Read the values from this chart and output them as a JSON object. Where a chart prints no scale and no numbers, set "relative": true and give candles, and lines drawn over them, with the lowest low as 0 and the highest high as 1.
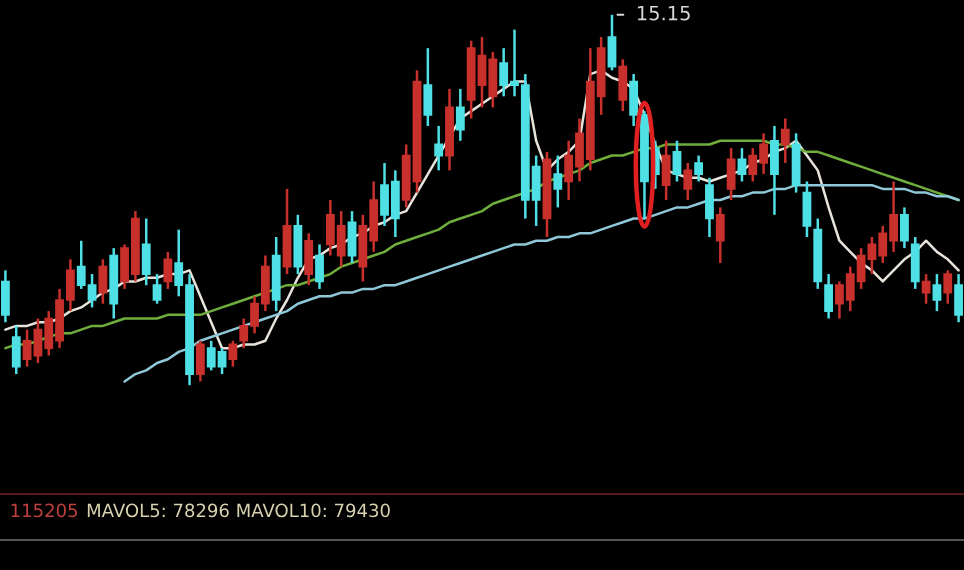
{
  "chart_data": {
    "type": "candlestick",
    "relative": true,
    "categories": [
      null,
      null,
      null,
      null,
      null,
      null,
      null,
      null,
      null,
      null,
      null,
      null,
      null,
      null,
      null,
      null,
      null,
      null,
      null,
      null,
      null,
      null,
      null,
      null,
      null,
      null,
      null,
      null,
      null,
      null,
      null,
      null,
      null,
      null,
      null,
      null,
      null,
      null,
      null,
      null,
      null,
      null,
      null,
      null,
      null,
      null,
      null,
      null,
      null,
      null,
      null,
      null,
      null,
      null,
      null,
      null,
      null,
      null,
      null,
      null,
      null,
      null,
      null,
      null,
      null,
      null,
      null,
      null,
      null,
      null,
      null,
      null,
      null,
      null,
      null,
      null,
      null,
      null,
      null,
      null,
      null,
      null,
      null,
      null,
      null,
      null,
      null,
      null,
      null
    ],
    "ohlc": [
      [
        0.28,
        0.31,
        0.17,
        0.19
      ],
      [
        0.13,
        0.16,
        0.03,
        0.05
      ],
      [
        0.07,
        0.15,
        0.05,
        0.12
      ],
      [
        0.08,
        0.18,
        0.06,
        0.15
      ],
      [
        0.1,
        0.2,
        0.08,
        0.18
      ],
      [
        0.12,
        0.26,
        0.1,
        0.23
      ],
      [
        0.23,
        0.34,
        0.2,
        0.31
      ],
      [
        0.32,
        0.39,
        0.26,
        0.27
      ],
      [
        0.27,
        0.3,
        0.21,
        0.23
      ],
      [
        0.25,
        0.34,
        0.22,
        0.32
      ],
      [
        0.35,
        0.37,
        0.18,
        0.22
      ],
      [
        0.28,
        0.38,
        0.26,
        0.37
      ],
      [
        0.3,
        0.47,
        0.28,
        0.45
      ],
      [
        0.38,
        0.45,
        0.27,
        0.3
      ],
      [
        0.27,
        0.3,
        0.22,
        0.23
      ],
      [
        0.28,
        0.36,
        0.26,
        0.34
      ],
      [
        0.33,
        0.42,
        0.24,
        0.27
      ],
      [
        0.27,
        0.3,
        0.0,
        0.03
      ],
      [
        0.03,
        0.12,
        0.01,
        0.11
      ],
      [
        0.1,
        0.12,
        0.04,
        0.05
      ],
      [
        0.09,
        0.1,
        0.03,
        0.05
      ],
      [
        0.07,
        0.12,
        0.05,
        0.11
      ],
      [
        0.12,
        0.18,
        0.1,
        0.16
      ],
      [
        0.16,
        0.24,
        0.14,
        0.22
      ],
      [
        0.22,
        0.35,
        0.2,
        0.32
      ],
      [
        0.35,
        0.4,
        0.2,
        0.23
      ],
      [
        0.32,
        0.53,
        0.3,
        0.43
      ],
      [
        0.43,
        0.46,
        0.3,
        0.32
      ],
      [
        0.3,
        0.41,
        0.27,
        0.39
      ],
      [
        0.35,
        0.38,
        0.26,
        0.28
      ],
      [
        0.38,
        0.5,
        0.35,
        0.46
      ],
      [
        0.35,
        0.47,
        0.32,
        0.43
      ],
      [
        0.44,
        0.47,
        0.33,
        0.35
      ],
      [
        0.32,
        0.46,
        0.28,
        0.43
      ],
      [
        0.39,
        0.55,
        0.36,
        0.5
      ],
      [
        0.54,
        0.6,
        0.43,
        0.46
      ],
      [
        0.55,
        0.58,
        0.4,
        0.45
      ],
      [
        0.5,
        0.65,
        0.48,
        0.62
      ],
      [
        0.55,
        0.85,
        0.52,
        0.82
      ],
      [
        0.81,
        0.91,
        0.7,
        0.73
      ],
      [
        0.65,
        0.7,
        0.58,
        0.62
      ],
      [
        0.62,
        0.8,
        0.58,
        0.75
      ],
      [
        0.75,
        0.8,
        0.66,
        0.69
      ],
      [
        0.77,
        0.93,
        0.72,
        0.91
      ],
      [
        0.81,
        0.94,
        0.75,
        0.89
      ],
      [
        0.78,
        0.9,
        0.75,
        0.88
      ],
      [
        0.87,
        0.91,
        0.78,
        0.81
      ],
      [
        0.82,
        0.96,
        0.78,
        0.81
      ],
      [
        0.81,
        0.84,
        0.45,
        0.5
      ],
      [
        0.59,
        0.62,
        0.43,
        0.5
      ],
      [
        0.45,
        0.63,
        0.4,
        0.61
      ],
      [
        0.57,
        0.62,
        0.48,
        0.53
      ],
      [
        0.55,
        0.66,
        0.5,
        0.62
      ],
      [
        0.59,
        0.72,
        0.55,
        0.68
      ],
      [
        0.61,
        0.91,
        0.58,
        0.82
      ],
      [
        0.78,
        0.94,
        0.73,
        0.91
      ],
      [
        0.94,
        1.0,
        0.85,
        0.86
      ],
      [
        0.77,
        0.88,
        0.74,
        0.86
      ],
      [
        0.82,
        0.84,
        0.7,
        0.73
      ],
      [
        0.73,
        0.74,
        0.45,
        0.55
      ],
      [
        0.64,
        0.66,
        0.53,
        0.57
      ],
      [
        0.54,
        0.66,
        0.5,
        0.62
      ],
      [
        0.63,
        0.66,
        0.55,
        0.57
      ],
      [
        0.53,
        0.6,
        0.5,
        0.58
      ],
      [
        0.6,
        0.62,
        0.55,
        0.57
      ],
      [
        0.54,
        0.56,
        0.4,
        0.45
      ],
      [
        0.39,
        0.48,
        0.33,
        0.46
      ],
      [
        0.53,
        0.64,
        0.5,
        0.61
      ],
      [
        0.61,
        0.64,
        0.55,
        0.57
      ],
      [
        0.57,
        0.64,
        0.55,
        0.62
      ],
      [
        0.6,
        0.68,
        0.57,
        0.65
      ],
      [
        0.66,
        0.7,
        0.46,
        0.57
      ],
      [
        0.65,
        0.72,
        0.6,
        0.69
      ],
      [
        0.65,
        0.68,
        0.52,
        0.54
      ],
      [
        0.52,
        0.55,
        0.4,
        0.43
      ],
      [
        0.42,
        0.45,
        0.26,
        0.28
      ],
      [
        0.27,
        0.3,
        0.18,
        0.2
      ],
      [
        0.22,
        0.28,
        0.18,
        0.27
      ],
      [
        0.23,
        0.32,
        0.2,
        0.3
      ],
      [
        0.28,
        0.37,
        0.26,
        0.35
      ],
      [
        0.34,
        0.4,
        0.3,
        0.38
      ],
      [
        0.35,
        0.43,
        0.33,
        0.41
      ],
      [
        0.39,
        0.55,
        0.36,
        0.46
      ],
      [
        0.46,
        0.48,
        0.37,
        0.39
      ],
      [
        0.38,
        0.4,
        0.26,
        0.28
      ],
      [
        0.25,
        0.3,
        0.22,
        0.28
      ],
      [
        0.27,
        0.3,
        0.2,
        0.23
      ],
      [
        0.25,
        0.31,
        0.22,
        0.3
      ],
      [
        0.27,
        0.3,
        0.17,
        0.19
      ]
    ],
    "colors": [
      "#4fe0e6",
      "#4fe0e6",
      "#c8302c",
      "#c8302c",
      "#c8302c",
      "#c8302c",
      "#c8302c",
      "#4fe0e6",
      "#4fe0e6",
      "#c8302c",
      "#4fe0e6",
      "#c8302c",
      "#c8302c",
      "#4fe0e6",
      "#4fe0e6",
      "#c8302c",
      "#4fe0e6",
      "#4fe0e6",
      "#c8302c",
      "#4fe0e6",
      "#4fe0e6",
      "#c8302c",
      "#c8302c",
      "#c8302c",
      "#c8302c",
      "#4fe0e6",
      "#c8302c",
      "#4fe0e6",
      "#c8302c",
      "#4fe0e6",
      "#c8302c",
      "#c8302c",
      "#4fe0e6",
      "#c8302c",
      "#c8302c",
      "#4fe0e6",
      "#4fe0e6",
      "#c8302c",
      "#c8302c",
      "#4fe0e6",
      "#4fe0e6",
      "#c8302c",
      "#4fe0e6",
      "#c8302c",
      "#c8302c",
      "#c8302c",
      "#4fe0e6",
      "#4fe0e6",
      "#4fe0e6",
      "#4fe0e6",
      "#c8302c",
      "#4fe0e6",
      "#c8302c",
      "#c8302c",
      "#c8302c",
      "#c8302c",
      "#4fe0e6",
      "#c8302c",
      "#4fe0e6",
      "#4fe0e6",
      "#4fe0e6",
      "#c8302c",
      "#4fe0e6",
      "#c8302c",
      "#4fe0e6",
      "#4fe0e6",
      "#c8302c",
      "#c8302c",
      "#4fe0e6",
      "#c8302c",
      "#c8302c",
      "#4fe0e6",
      "#c8302c",
      "#4fe0e6",
      "#4fe0e6",
      "#4fe0e6",
      "#4fe0e6",
      "#c8302c",
      "#c8302c",
      "#c8302c",
      "#c8302c",
      "#c8302c",
      "#c8302c",
      "#4fe0e6",
      "#4fe0e6",
      "#c8302c",
      "#4fe0e6",
      "#c8302c",
      "#4fe0e6"
    ],
    "series": [
      {
        "type": "line",
        "color": "#e8e4dc",
        "values": [
          0.15,
          0.16,
          0.16,
          0.17,
          0.17,
          0.18,
          0.2,
          0.21,
          0.23,
          0.25,
          0.26,
          0.28,
          0.28,
          0.29,
          0.29,
          0.3,
          0.3,
          0.31,
          0.24,
          0.17,
          0.1,
          0.1,
          0.11,
          0.11,
          0.12,
          0.18,
          0.23,
          0.29,
          0.34,
          0.35,
          0.37,
          0.38,
          0.4,
          0.41,
          0.43,
          0.44,
          0.46,
          0.47,
          0.52,
          0.57,
          0.62,
          0.67,
          0.72,
          0.74,
          0.76,
          0.78,
          0.8,
          0.82,
          0.82,
          0.66,
          0.58,
          0.61,
          0.63,
          0.66,
          0.84,
          0.85,
          0.83,
          0.82,
          0.8,
          0.73,
          0.65,
          0.58,
          0.57,
          0.56,
          0.56,
          0.55,
          0.56,
          0.57,
          0.58,
          0.6,
          0.61,
          0.63,
          0.64,
          0.66,
          0.62,
          0.58,
          0.48,
          0.39,
          0.36,
          0.33,
          0.31,
          0.28,
          0.31,
          0.34,
          0.36,
          0.39,
          0.36,
          0.34,
          0.31
        ]
      },
      {
        "type": "line",
        "color": "#6fae3c",
        "values": [
          0.1,
          0.11,
          0.11,
          0.12,
          0.13,
          0.14,
          0.14,
          0.15,
          0.16,
          0.16,
          0.17,
          0.18,
          0.18,
          0.18,
          0.18,
          0.19,
          0.19,
          0.19,
          0.19,
          0.2,
          0.21,
          0.22,
          0.23,
          0.24,
          0.25,
          0.26,
          0.27,
          0.27,
          0.28,
          0.29,
          0.3,
          0.32,
          0.33,
          0.34,
          0.35,
          0.36,
          0.38,
          0.39,
          0.4,
          0.41,
          0.42,
          0.44,
          0.45,
          0.46,
          0.47,
          0.49,
          0.5,
          0.51,
          0.52,
          0.53,
          0.55,
          0.56,
          0.57,
          0.58,
          0.6,
          0.61,
          0.62,
          0.62,
          0.63,
          0.64,
          0.64,
          0.65,
          0.65,
          0.65,
          0.65,
          0.65,
          0.66,
          0.66,
          0.66,
          0.66,
          0.66,
          0.65,
          0.65,
          0.64,
          0.63,
          0.63,
          0.62,
          0.61,
          0.6,
          0.59,
          0.58,
          0.57,
          0.56,
          0.55,
          0.54,
          0.53,
          0.52,
          0.51,
          0.5
        ]
      },
      {
        "type": "line",
        "color": "#8fc8d8",
        "values": [
          null,
          null,
          null,
          null,
          null,
          null,
          null,
          null,
          null,
          null,
          null,
          0.01,
          0.03,
          0.04,
          0.06,
          0.07,
          0.09,
          0.1,
          0.12,
          0.13,
          0.14,
          0.15,
          0.16,
          0.17,
          0.18,
          0.19,
          0.2,
          0.22,
          0.23,
          0.24,
          0.24,
          0.25,
          0.25,
          0.26,
          0.26,
          0.27,
          0.27,
          0.28,
          0.29,
          0.3,
          0.31,
          0.32,
          0.33,
          0.34,
          0.35,
          0.36,
          0.37,
          0.38,
          0.38,
          0.39,
          0.39,
          0.4,
          0.4,
          0.41,
          0.41,
          0.42,
          0.43,
          0.44,
          0.45,
          0.45,
          0.46,
          0.47,
          0.48,
          0.48,
          0.49,
          0.5,
          0.5,
          0.51,
          0.51,
          0.52,
          0.52,
          0.53,
          0.53,
          0.54,
          0.54,
          0.54,
          0.54,
          0.54,
          0.54,
          0.54,
          0.54,
          0.53,
          0.53,
          0.53,
          0.52,
          0.52,
          0.51,
          0.51,
          0.5
        ]
      }
    ],
    "annotations": [
      "15.15",
      "115205",
      "MAVOL5: 78296 MAVOL10: 79430"
    ]
  }
}
